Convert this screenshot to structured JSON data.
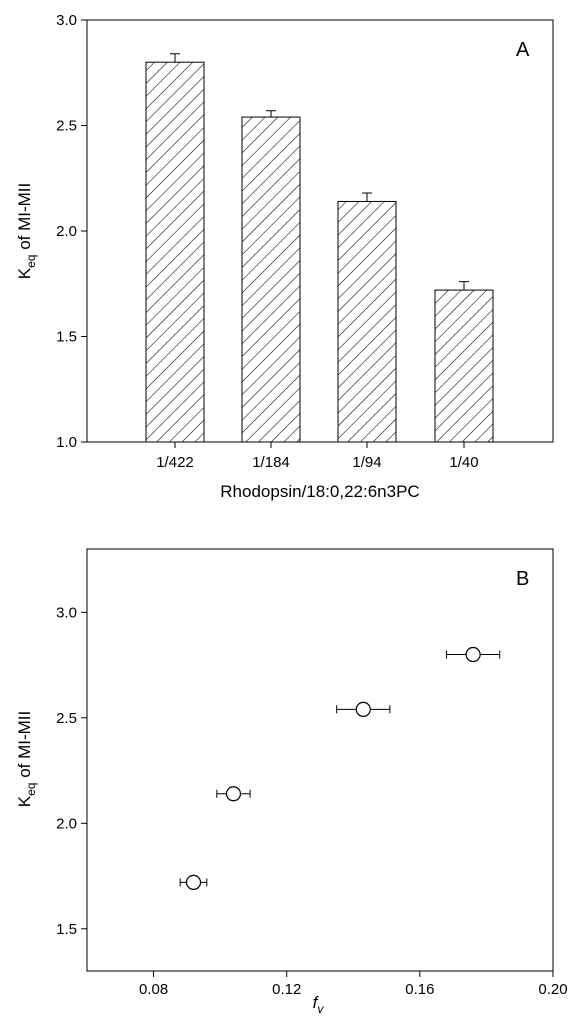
{
  "chart_data": [
    {
      "type": "bar",
      "panel_label": "A",
      "categories": [
        "1/422",
        "1/184",
        "1/94",
        "1/40"
      ],
      "values": [
        2.8,
        2.54,
        2.14,
        1.72
      ],
      "errors": [
        0.04,
        0.03,
        0.04,
        0.04
      ],
      "xlabel": "Rhodopsin/18:0,22:6n3PC",
      "ylabel": {
        "main": "K",
        "sub": "eq",
        "rest": " of MI-MII"
      },
      "ylim": [
        1.0,
        3.0
      ],
      "yticks": [
        "1.0",
        "1.5",
        "2.0",
        "2.5",
        "3.0"
      ],
      "fill": "diagonal hatch",
      "grid": false
    },
    {
      "type": "scatter",
      "panel_label": "B",
      "points": [
        {
          "x": 0.092,
          "y": 1.72,
          "xerr": 0.004,
          "yerr": 0.03
        },
        {
          "x": 0.104,
          "y": 2.14,
          "xerr": 0.005,
          "yerr": 0.03
        },
        {
          "x": 0.143,
          "y": 2.54,
          "xerr": 0.008,
          "yerr": 0.03
        },
        {
          "x": 0.176,
          "y": 2.8,
          "xerr": 0.008,
          "yerr": 0.03
        }
      ],
      "xlabel": {
        "main": "f",
        "sub": "v"
      },
      "ylabel": {
        "main": "K",
        "sub": "eq",
        "rest": " of MI-MII"
      },
      "xlim": [
        0.06,
        0.2
      ],
      "ylim": [
        1.3,
        3.3
      ],
      "xticks": [
        "0.08",
        "0.12",
        "0.16",
        "0.20"
      ],
      "yticks": [
        "1.5",
        "2.0",
        "2.5",
        "3.0"
      ],
      "marker": "open circle",
      "grid": false
    }
  ]
}
